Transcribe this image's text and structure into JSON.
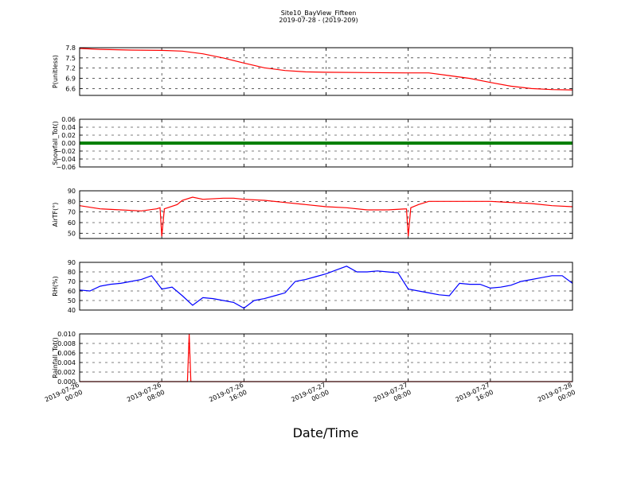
{
  "figure": {
    "title_line1": "Site10_BayView_Fifteen",
    "title_line2": "2019-07-28 - (2019-209)",
    "xlabel": "Date/Time",
    "x_tick_labels": [
      [
        "2019-07-26",
        "00:00"
      ],
      [
        "2019-07-26",
        "08:00"
      ],
      [
        "2019-07-26",
        "16:00"
      ],
      [
        "2019-07-27",
        "00:00"
      ],
      [
        "2019-07-27",
        "08:00"
      ],
      [
        "2019-07-27",
        "16:00"
      ],
      [
        "2019-07-28",
        "00:00"
      ]
    ]
  },
  "chart_data": [
    {
      "type": "line",
      "ylabel": "P(unitless)",
      "color": "#ff0000",
      "ylim": [
        6.4,
        7.8
      ],
      "yticks": [
        "6.6",
        "6.9",
        "7.2",
        "7.5",
        "7.8"
      ],
      "ytick_values": [
        6.6,
        6.9,
        7.2,
        7.5,
        7.8
      ],
      "xlim": [
        "2019-07-26 00:00",
        "2019-07-28 00:00"
      ],
      "grid": true,
      "x": [
        "2019-07-26 00:00",
        "2019-07-26 02:00",
        "2019-07-26 05:00",
        "2019-07-26 08:00",
        "2019-07-26 10:00",
        "2019-07-26 12:00",
        "2019-07-26 14:00",
        "2019-07-26 16:00",
        "2019-07-26 18:00",
        "2019-07-26 20:00",
        "2019-07-26 22:00",
        "2019-07-27 00:00",
        "2019-07-27 04:00",
        "2019-07-27 08:00",
        "2019-07-27 10:00",
        "2019-07-27 12:00",
        "2019-07-27 14:00",
        "2019-07-27 16:00",
        "2019-07-27 18:00",
        "2019-07-27 20:00",
        "2019-07-27 22:00",
        "2019-07-28 00:00"
      ],
      "values": [
        7.78,
        7.75,
        7.73,
        7.72,
        7.7,
        7.62,
        7.5,
        7.35,
        7.21,
        7.13,
        7.09,
        7.08,
        7.07,
        7.06,
        7.06,
        6.98,
        6.9,
        6.78,
        6.67,
        6.6,
        6.57,
        6.56
      ]
    },
    {
      "type": "scatter",
      "ylabel": "Snowfall_Tot()",
      "color": "#008000",
      "ylim": [
        -0.06,
        0.06
      ],
      "yticks": [
        "−0.06",
        "−0.04",
        "−0.02",
        "0.00",
        "0.02",
        "0.04",
        "0.06"
      ],
      "ytick_values": [
        -0.06,
        -0.04,
        -0.02,
        0.0,
        0.02,
        0.04,
        0.06
      ],
      "xlim": [
        "2019-07-26 00:00",
        "2019-07-28 00:00"
      ],
      "grid": true,
      "x": [
        "2019-07-26 00:00",
        "2019-07-28 00:00"
      ],
      "values": [
        0.0,
        0.0
      ]
    },
    {
      "type": "line",
      "ylabel": "AirTF(°)",
      "color": "#ff0000",
      "ylim": [
        45,
        90
      ],
      "yticks": [
        "50",
        "60",
        "70",
        "80",
        "90"
      ],
      "ytick_values": [
        50,
        60,
        70,
        80,
        90
      ],
      "xlim": [
        "2019-07-26 00:00",
        "2019-07-28 00:00"
      ],
      "grid": true,
      "x": [
        "2019-07-26 00:00",
        "2019-07-26 02:00",
        "2019-07-26 04:00",
        "2019-07-26 06:00",
        "2019-07-26 07:30",
        "2019-07-26 07:50",
        "2019-07-26 08:00",
        "2019-07-26 08:15",
        "2019-07-26 09:30",
        "2019-07-26 10:00",
        "2019-07-26 11:00",
        "2019-07-26 12:00",
        "2019-07-26 14:00",
        "2019-07-26 15:00",
        "2019-07-26 16:00",
        "2019-07-26 18:00",
        "2019-07-26 20:00",
        "2019-07-26 22:00",
        "2019-07-27 00:00",
        "2019-07-27 02:00",
        "2019-07-27 04:00",
        "2019-07-27 06:00",
        "2019-07-27 07:50",
        "2019-07-27 08:00",
        "2019-07-27 08:15",
        "2019-07-27 09:00",
        "2019-07-27 10:00",
        "2019-07-27 12:00",
        "2019-07-27 14:00",
        "2019-07-27 16:00",
        "2019-07-27 18:00",
        "2019-07-27 20:00",
        "2019-07-27 22:00",
        "2019-07-28 00:00"
      ],
      "values": [
        76,
        73,
        72,
        71,
        73,
        74,
        47,
        73,
        77,
        81,
        84,
        82,
        83,
        83,
        82,
        81,
        79,
        77,
        75,
        74,
        72,
        72,
        73,
        47,
        74,
        77,
        80,
        80,
        80,
        80,
        79,
        78,
        76,
        75
      ]
    },
    {
      "type": "line",
      "ylabel": "RH(%)",
      "color": "#0000ff",
      "ylim": [
        40,
        90
      ],
      "yticks": [
        "40",
        "50",
        "60",
        "70",
        "80",
        "90"
      ],
      "ytick_values": [
        40,
        50,
        60,
        70,
        80,
        90
      ],
      "xlim": [
        "2019-07-26 00:00",
        "2019-07-28 00:00"
      ],
      "grid": true,
      "x": [
        "2019-07-26 00:00",
        "2019-07-26 01:00",
        "2019-07-26 02:00",
        "2019-07-26 03:00",
        "2019-07-26 04:00",
        "2019-07-26 05:00",
        "2019-07-26 06:00",
        "2019-07-26 07:00",
        "2019-07-26 08:00",
        "2019-07-26 09:00",
        "2019-07-26 10:00",
        "2019-07-26 11:00",
        "2019-07-26 12:00",
        "2019-07-26 13:00",
        "2019-07-26 14:00",
        "2019-07-26 15:00",
        "2019-07-26 16:00",
        "2019-07-26 17:00",
        "2019-07-26 18:00",
        "2019-07-26 19:00",
        "2019-07-26 20:00",
        "2019-07-26 21:00",
        "2019-07-26 22:00",
        "2019-07-26 23:00",
        "2019-07-27 00:00",
        "2019-07-27 01:00",
        "2019-07-27 02:00",
        "2019-07-27 03:00",
        "2019-07-27 04:00",
        "2019-07-27 05:00",
        "2019-07-27 06:00",
        "2019-07-27 07:00",
        "2019-07-27 08:00",
        "2019-07-27 09:00",
        "2019-07-27 10:00",
        "2019-07-27 11:00",
        "2019-07-27 12:00",
        "2019-07-27 13:00",
        "2019-07-27 14:00",
        "2019-07-27 15:00",
        "2019-07-27 16:00",
        "2019-07-27 17:00",
        "2019-07-27 18:00",
        "2019-07-27 19:00",
        "2019-07-27 20:00",
        "2019-07-27 21:00",
        "2019-07-27 22:00",
        "2019-07-27 23:00",
        "2019-07-28 00:00"
      ],
      "values": [
        61,
        60,
        65,
        67,
        68,
        70,
        72,
        76,
        62,
        64,
        55,
        45,
        53,
        52,
        50,
        48,
        42,
        50,
        52,
        55,
        58,
        70,
        72,
        75,
        78,
        82,
        86,
        80,
        80,
        81,
        80,
        79,
        62,
        60,
        58,
        56,
        55,
        68,
        67,
        67,
        63,
        64,
        66,
        70,
        72,
        74,
        76,
        76,
        68
      ]
    },
    {
      "type": "line",
      "ylabel": "Rainfall_Tot()",
      "color": "#ff0000",
      "ylim": [
        0.0,
        0.01
      ],
      "yticks": [
        "0.000",
        "0.002",
        "0.004",
        "0.006",
        "0.008",
        "0.010"
      ],
      "ytick_values": [
        0.0,
        0.002,
        0.004,
        0.006,
        0.008,
        0.01
      ],
      "xlim": [
        "2019-07-26 00:00",
        "2019-07-28 00:00"
      ],
      "grid": true,
      "x": [
        "2019-07-26 00:00",
        "2019-07-26 10:30",
        "2019-07-26 10:40",
        "2019-07-26 10:50",
        "2019-07-28 00:00"
      ],
      "values": [
        0.0,
        0.0,
        0.01,
        0.0,
        0.0
      ]
    }
  ]
}
